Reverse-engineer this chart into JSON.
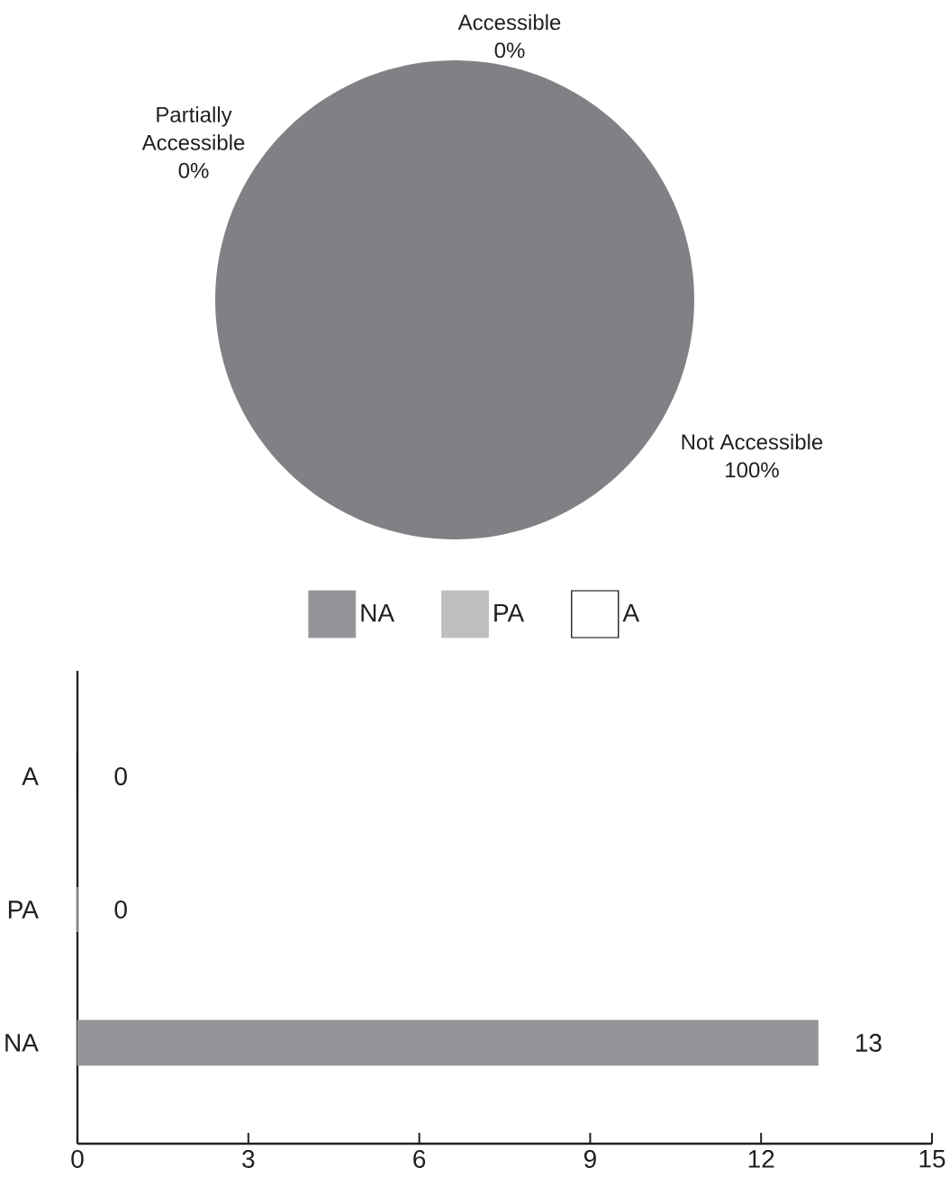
{
  "chart_data": [
    {
      "type": "pie",
      "categories": [
        "Not Accessible",
        "Partially Accessible",
        "Accessible"
      ],
      "values": [
        100,
        0,
        0
      ],
      "value_labels": [
        "100%",
        "0%",
        "0%"
      ],
      "colors": [
        "#808184",
        "#bcbec0",
        "#ffffff"
      ]
    },
    {
      "type": "bar",
      "orientation": "horizontal",
      "stacked": true,
      "categories": [
        "A",
        "PA",
        "NA"
      ],
      "series": [
        {
          "name": "NA",
          "color": "#939598",
          "values": [
            null,
            null,
            13
          ]
        },
        {
          "name": "PA",
          "color": "#bcbec0",
          "values": [
            null,
            0,
            null
          ]
        },
        {
          "name": "A",
          "color": "#ffffff",
          "values": [
            0,
            null,
            null
          ]
        }
      ],
      "xlim": [
        0,
        15
      ],
      "xticks": [
        0,
        3,
        6,
        9,
        12,
        15
      ],
      "data_labels": true,
      "legend": "top"
    }
  ]
}
